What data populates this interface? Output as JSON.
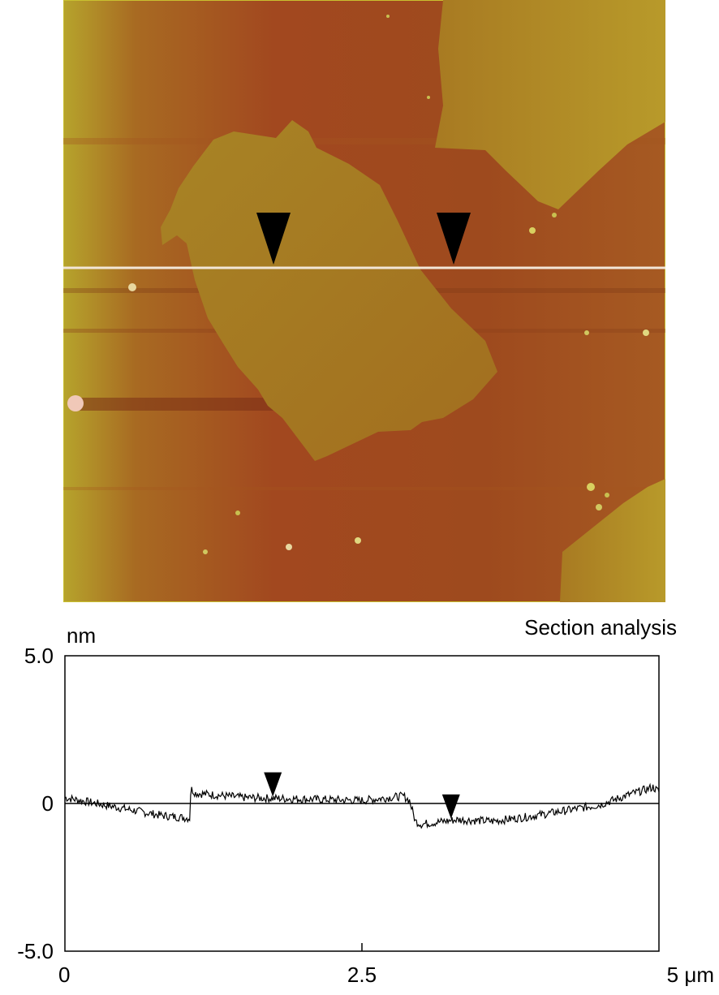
{
  "afm_image": {
    "description_colors": {
      "substrate": "#A0481F",
      "flake": "#A2741F",
      "highlight": "#C9C030",
      "scan_line": "#F2E6D8",
      "marker": "#000000"
    },
    "markers_x_um": [
      1.75,
      3.25
    ]
  },
  "chart_data": {
    "type": "line",
    "title": "Section analysis",
    "ylabel": "nm",
    "xlabel": "",
    "xlim": [
      0,
      5
    ],
    "ylim": [
      -5,
      5
    ],
    "x_ticks": [
      {
        "value": 0,
        "label": "0"
      },
      {
        "value": 2.5,
        "label": "2.5"
      },
      {
        "value": 5,
        "label": "5 μm"
      }
    ],
    "y_ticks": [
      {
        "value": 5,
        "label": "5.0"
      },
      {
        "value": 0,
        "label": "0"
      },
      {
        "value": -5,
        "label": "-5.0"
      }
    ],
    "zero_line": true,
    "markers_x": [
      1.75,
      3.25
    ],
    "series": [
      {
        "x": [
          0,
          0.4,
          0.8,
          1.05,
          1.06,
          1.1,
          1.5,
          2.0,
          2.5,
          2.85,
          2.9,
          2.95,
          3.0,
          3.3,
          3.6,
          3.9,
          4.2,
          4.5,
          4.75,
          4.95,
          5.0
        ],
        "y": [
          0.2,
          -0.1,
          -0.4,
          -0.5,
          0.5,
          0.35,
          0.2,
          0.15,
          0.1,
          0.25,
          0.1,
          -0.6,
          -0.7,
          -0.55,
          -0.6,
          -0.45,
          -0.25,
          -0.05,
          0.3,
          0.55,
          0.4
        ]
      }
    ]
  }
}
